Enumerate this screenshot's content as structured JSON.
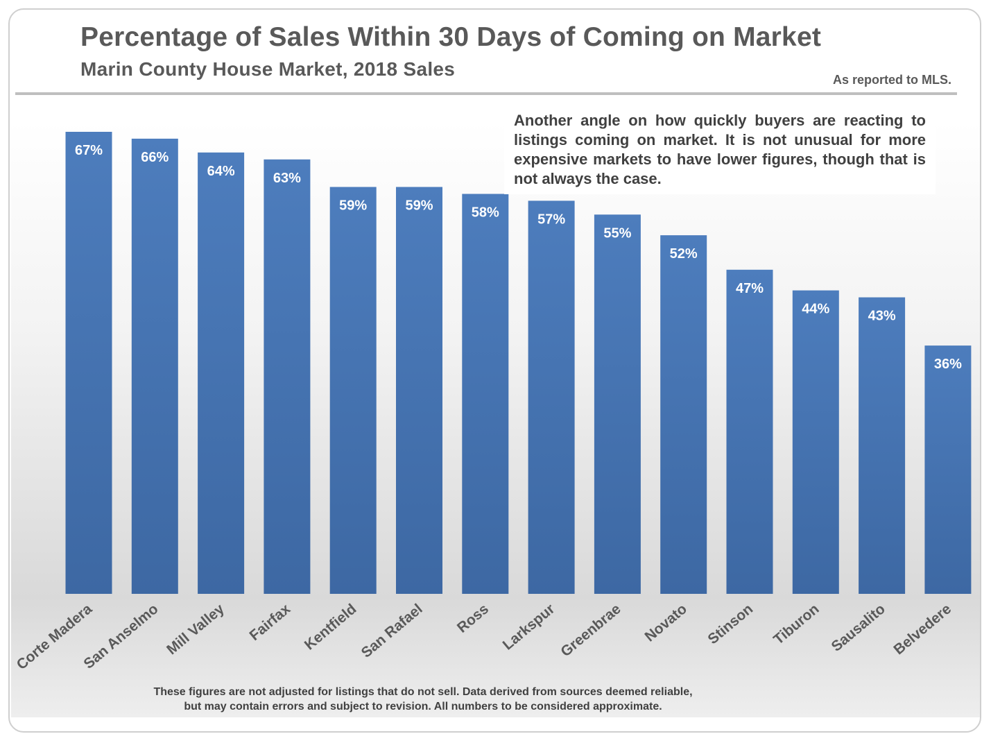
{
  "header": {
    "title": "Percentage of Sales Within 30 Days of Coming on Market",
    "subtitle": "Marin County House Market, 2018 Sales",
    "source": "As reported to MLS."
  },
  "note": "Another angle on how quickly buyers are reacting to listings coming on market. It is not unusual for more expensive markets to have lower figures, though that is not always the case.",
  "footnote": {
    "line1": "These figures are not adjusted for listings that do not sell. Data derived from sources deemed reliable,",
    "line2": "but may contain errors and subject to revision. All numbers to be considered approximate."
  },
  "colors": {
    "bar": "#4a7ab8",
    "bar_dark": "#3b66a0",
    "text": "#595959"
  },
  "chart_data": {
    "type": "bar",
    "title": "Percentage of Sales Within 30 Days of Coming on Market",
    "subtitle": "Marin County House Market, 2018 Sales",
    "xlabel": "",
    "ylabel": "",
    "ylim": [
      0,
      67
    ],
    "grid": false,
    "categories": [
      "Corte Madera",
      "San Anselmo",
      "Mill Valley",
      "Fairfax",
      "Kentfield",
      "San Rafael",
      "Ross",
      "Larkspur",
      "Greenbrae",
      "Novato",
      "Stinson",
      "Tiburon",
      "Sausalito",
      "Belvedere"
    ],
    "values": [
      67,
      66,
      64,
      63,
      59,
      59,
      58,
      57,
      55,
      52,
      47,
      44,
      43,
      36
    ],
    "data_labels": [
      "67%",
      "66%",
      "64%",
      "63%",
      "59%",
      "59%",
      "58%",
      "57%",
      "55%",
      "52%",
      "47%",
      "44%",
      "43%",
      "36%"
    ]
  }
}
